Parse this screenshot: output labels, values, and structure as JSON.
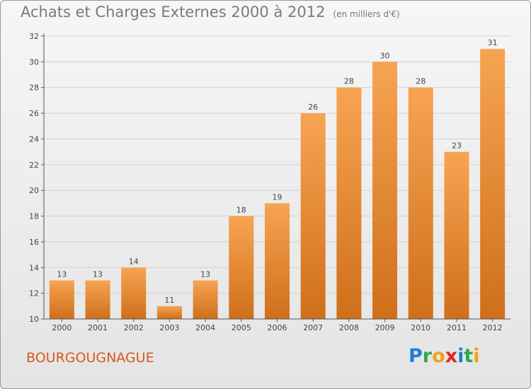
{
  "title": "Achats et Charges Externes 2000 à 2012",
  "unit": "(en milliers d'€)",
  "commune": "BOURGOUGNAGUE",
  "logo": {
    "text": "Proxiti",
    "letters": [
      {
        "ch": "P",
        "color": "#1f7fd1"
      },
      {
        "ch": "r",
        "color": "#2fa84f"
      },
      {
        "ch": "o",
        "color": "#f0a21b"
      },
      {
        "ch": "x",
        "color": "#e0262a"
      },
      {
        "ch": "i",
        "color": "#1f7fd1"
      },
      {
        "ch": "t",
        "color": "#2fa84f"
      },
      {
        "ch": "i",
        "color": "#f0a21b"
      }
    ]
  },
  "colors": {
    "bar_top": "#f7a452",
    "bar_bottom": "#cf6f1a",
    "axis": "#555555",
    "grid": "#d2d2d2",
    "label": "#444444"
  },
  "chart_data": {
    "type": "bar",
    "categories": [
      "2000",
      "2001",
      "2002",
      "2003",
      "2004",
      "2005",
      "2006",
      "2007",
      "2008",
      "2009",
      "2010",
      "2011",
      "2012"
    ],
    "values": [
      13,
      13,
      14,
      11,
      13,
      18,
      19,
      26,
      28,
      30,
      28,
      23,
      31
    ],
    "title": "Achats et Charges Externes 2000 à 2012",
    "subtitle": "(en milliers d'€)",
    "xlabel": "",
    "ylabel": "",
    "ylim": [
      10,
      32
    ],
    "yticks": [
      10,
      12,
      14,
      16,
      18,
      20,
      22,
      24,
      26,
      28,
      30,
      32
    ],
    "grid": true,
    "legend": "none"
  }
}
